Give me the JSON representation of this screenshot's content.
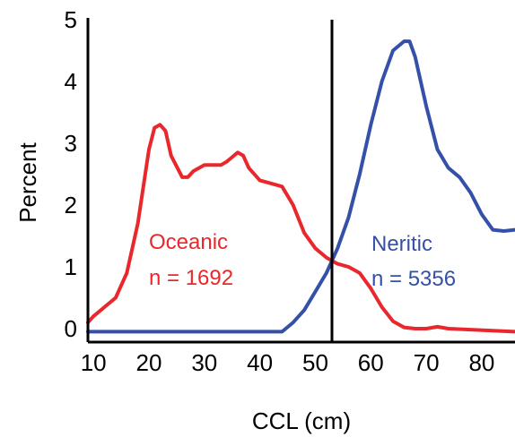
{
  "chart_data": {
    "type": "line",
    "title": "",
    "xlabel": "CCL (cm)",
    "ylabel": "Percent",
    "xlim": [
      9,
      86
    ],
    "ylim": [
      -0.2,
      5
    ],
    "xticks": [
      10,
      20,
      30,
      40,
      50,
      60,
      70,
      80
    ],
    "yticks": [
      0,
      1,
      2,
      3,
      4,
      5
    ],
    "grid": false,
    "legend": "none",
    "vline_x": 53,
    "series": [
      {
        "name": "Oceanic",
        "color": "#e8282c",
        "points": [
          [
            9,
            0.1
          ],
          [
            10,
            0.2
          ],
          [
            12,
            0.35
          ],
          [
            14,
            0.5
          ],
          [
            16,
            0.9
          ],
          [
            18,
            1.7
          ],
          [
            20,
            2.9
          ],
          [
            21,
            3.25
          ],
          [
            22,
            3.3
          ],
          [
            23,
            3.2
          ],
          [
            24,
            2.8
          ],
          [
            26,
            2.45
          ],
          [
            27,
            2.45
          ],
          [
            28,
            2.55
          ],
          [
            30,
            2.65
          ],
          [
            33,
            2.65
          ],
          [
            34,
            2.7
          ],
          [
            36,
            2.85
          ],
          [
            37,
            2.8
          ],
          [
            38,
            2.6
          ],
          [
            40,
            2.4
          ],
          [
            42,
            2.35
          ],
          [
            44,
            2.3
          ],
          [
            46,
            2.0
          ],
          [
            48,
            1.55
          ],
          [
            50,
            1.3
          ],
          [
            52,
            1.15
          ],
          [
            54,
            1.05
          ],
          [
            56,
            1.0
          ],
          [
            58,
            0.9
          ],
          [
            60,
            0.65
          ],
          [
            62,
            0.35
          ],
          [
            64,
            0.12
          ],
          [
            66,
            0.02
          ],
          [
            68,
            0.0
          ],
          [
            70,
            0.0
          ],
          [
            72,
            0.03
          ],
          [
            74,
            0.0
          ],
          [
            86,
            -0.05
          ]
        ]
      },
      {
        "name": "Neritic",
        "color": "#3550a8",
        "points": [
          [
            9,
            -0.05
          ],
          [
            40,
            -0.05
          ],
          [
            44,
            -0.05
          ],
          [
            46,
            0.1
          ],
          [
            48,
            0.3
          ],
          [
            50,
            0.6
          ],
          [
            52,
            0.9
          ],
          [
            54,
            1.3
          ],
          [
            56,
            1.8
          ],
          [
            58,
            2.5
          ],
          [
            60,
            3.3
          ],
          [
            62,
            4.0
          ],
          [
            64,
            4.5
          ],
          [
            66,
            4.65
          ],
          [
            67,
            4.65
          ],
          [
            68,
            4.4
          ],
          [
            70,
            3.6
          ],
          [
            72,
            2.9
          ],
          [
            74,
            2.6
          ],
          [
            76,
            2.45
          ],
          [
            78,
            2.2
          ],
          [
            80,
            1.85
          ],
          [
            82,
            1.6
          ],
          [
            84,
            1.58
          ],
          [
            86,
            1.6
          ]
        ]
      }
    ],
    "annotations": [
      {
        "text": "Oceanic",
        "series": 0
      },
      {
        "text": "n = 1692",
        "series": 0
      },
      {
        "text": "Neritic",
        "series": 1
      },
      {
        "text": "n = 5356",
        "series": 1
      }
    ]
  }
}
